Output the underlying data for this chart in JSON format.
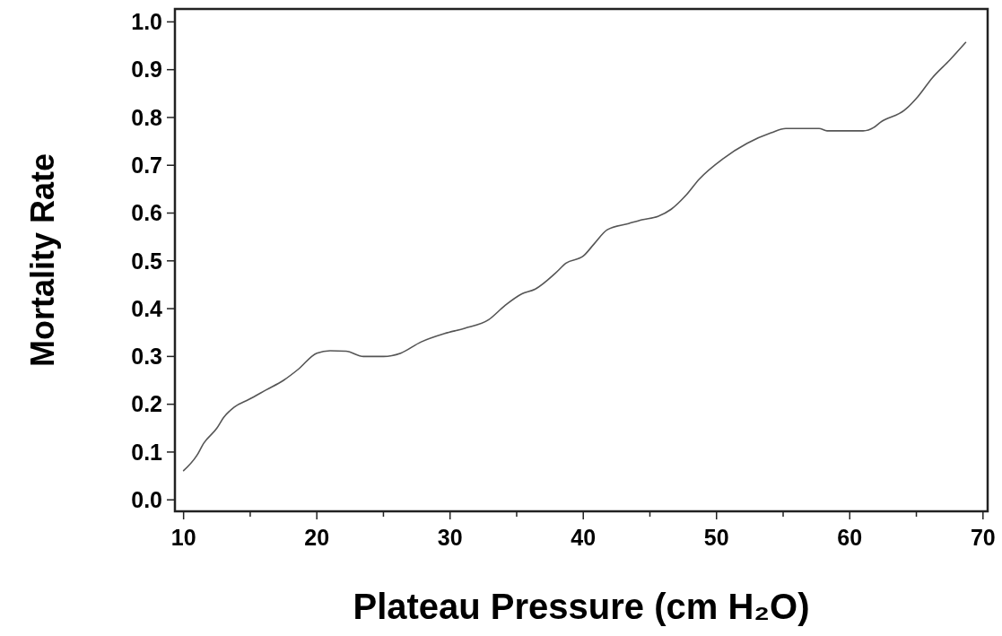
{
  "chart_data": {
    "type": "line",
    "xlabel": "Plateau Pressure (cm H₂O)",
    "ylabel": "Mortality Rate",
    "xlim": [
      9.35,
      70.35
    ],
    "ylim": [
      -0.024,
      1.027
    ],
    "xticks": [
      10,
      {
        "value": 15,
        "label": null
      },
      20,
      {
        "value": 25,
        "label": null
      },
      30,
      {
        "value": 35,
        "label": null
      },
      40,
      {
        "value": 45,
        "label": null
      },
      50,
      {
        "value": 55,
        "label": null
      },
      60,
      {
        "value": 65,
        "label": null
      },
      70
    ],
    "yticks": [
      {
        "value": 0,
        "label": "0.0"
      },
      0.1,
      0.2,
      0.3,
      0.4,
      0.5,
      0.6,
      0.7,
      0.8,
      0.9,
      {
        "value": 1,
        "label": "1.0"
      }
    ],
    "grid": false,
    "marker": "none",
    "line_style": "solid",
    "series": [
      {
        "color": "#555555",
        "x": [
          10,
          11,
          11.5,
          12.5,
          13,
          13.8,
          14.9,
          16.2,
          17.5,
          18.6,
          20,
          21,
          22.2,
          23.5,
          25,
          26.3,
          27.8,
          29.6,
          31.1,
          32.9,
          34.1,
          35.4,
          36.4,
          37.9,
          38.7,
          40,
          40.8,
          41.8,
          43.4,
          44.4,
          45.6,
          46.6,
          47.7,
          48.7,
          50.5,
          52.3,
          54.1,
          55.2,
          57.7,
          58.3,
          61,
          61.8,
          62.3,
          64.1,
          65.1,
          66.2,
          67.5,
          68.7
        ],
        "values": [
          0.061,
          0.093,
          0.118,
          0.15,
          0.172,
          0.194,
          0.21,
          0.23,
          0.25,
          0.273,
          0.307,
          0.312,
          0.311,
          0.3,
          0.3,
          0.307,
          0.33,
          0.348,
          0.359,
          0.377,
          0.406,
          0.431,
          0.441,
          0.474,
          0.495,
          0.51,
          0.535,
          0.565,
          0.578,
          0.586,
          0.593,
          0.608,
          0.637,
          0.671,
          0.714,
          0.746,
          0.768,
          0.777,
          0.777,
          0.772,
          0.772,
          0.779,
          0.79,
          0.815,
          0.843,
          0.883,
          0.92,
          0.957
        ]
      }
    ]
  }
}
